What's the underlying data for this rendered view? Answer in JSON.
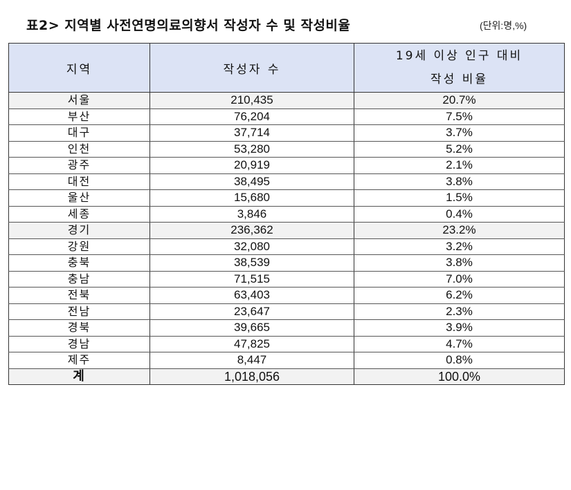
{
  "title": "표2> 지역별 사전연명의료의향서 작성자 수 및 작성비율",
  "unit": "(단위:명,%)",
  "table": {
    "headers": {
      "region": "지역",
      "count": "작성자 수",
      "ratio_line1": "19세 이상 인구 대비",
      "ratio_line2": "작성 비율"
    },
    "rows": [
      {
        "region": "서울",
        "count": "210,435",
        "ratio": "20.7%",
        "shaded": true
      },
      {
        "region": "부산",
        "count": "76,204",
        "ratio": "7.5%"
      },
      {
        "region": "대구",
        "count": "37,714",
        "ratio": "3.7%"
      },
      {
        "region": "인천",
        "count": "53,280",
        "ratio": "5.2%"
      },
      {
        "region": "광주",
        "count": "20,919",
        "ratio": "2.1%"
      },
      {
        "region": "대전",
        "count": "38,495",
        "ratio": "3.8%"
      },
      {
        "region": "울산",
        "count": "15,680",
        "ratio": "1.5%"
      },
      {
        "region": "세종",
        "count": "3,846",
        "ratio": "0.4%"
      },
      {
        "region": "경기",
        "count": "236,362",
        "ratio": "23.2%",
        "shaded": true
      },
      {
        "region": "강원",
        "count": "32,080",
        "ratio": "3.2%"
      },
      {
        "region": "충북",
        "count": "38,539",
        "ratio": "3.8%"
      },
      {
        "region": "충남",
        "count": "71,515",
        "ratio": "7.0%"
      },
      {
        "region": "전북",
        "count": "63,403",
        "ratio": "6.2%"
      },
      {
        "region": "전남",
        "count": "23,647",
        "ratio": "2.3%"
      },
      {
        "region": "경북",
        "count": "39,665",
        "ratio": "3.9%"
      },
      {
        "region": "경남",
        "count": "47,825",
        "ratio": "4.7%"
      },
      {
        "region": "제주",
        "count": "8,447",
        "ratio": "0.8%"
      }
    ],
    "total": {
      "region": "계",
      "count": "1,018,056",
      "ratio": "100.0%"
    }
  },
  "colors": {
    "header_bg": "#dce3f5",
    "shaded_row_bg": "#f2f2f2",
    "border": "#333333"
  }
}
